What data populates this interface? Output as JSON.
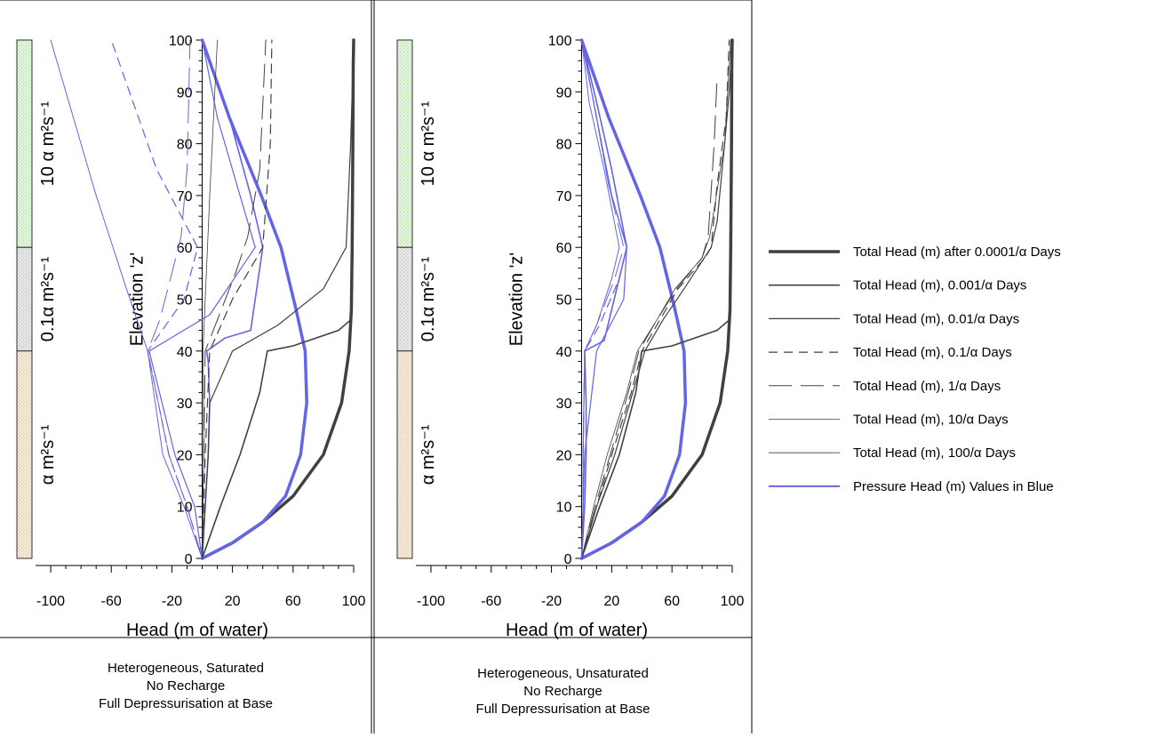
{
  "colors": {
    "total_head": "#404040",
    "pressure_head": "#6464e6",
    "layer_top": "#e0f2dc",
    "layer_mid": "#e4e4e4",
    "layer_bottom": "#f2e6d6"
  },
  "legend": {
    "items": [
      {
        "label": "Total Head (m) after 0.0001/α Days",
        "style": "thick"
      },
      {
        "label": "Total Head (m), 0.001/α Days",
        "style": "medium"
      },
      {
        "label": "Total Head (m),  0.01/α Days",
        "style": "thin"
      },
      {
        "label": "Total Head (m),  0.1/α Days",
        "style": "dash"
      },
      {
        "label": "Total Head (m),  1/α Days",
        "style": "longdash"
      },
      {
        "label": "Total Head (m), 10/α Days",
        "style": "hair"
      },
      {
        "label": "Total Head (m), 100/α Days",
        "style": "hair"
      },
      {
        "label": "Pressure Head (m) Values in Blue",
        "style": "blue"
      }
    ]
  },
  "chart_data": [
    {
      "type": "line",
      "xlabel": "Head (m of water)",
      "ylabel": "Elevation 'z'",
      "xlim": [
        -110,
        100
      ],
      "ylim": [
        0,
        100
      ],
      "xticks": [
        -100,
        -60,
        -20,
        20,
        60,
        100
      ],
      "yticks": [
        0,
        10,
        20,
        30,
        40,
        50,
        60,
        70,
        80,
        90,
        100
      ],
      "layers": [
        {
          "label": "10 α m²s⁻¹",
          "from": 60,
          "to": 100
        },
        {
          "label": "0.1α m²s⁻¹",
          "from": 40,
          "to": 60
        },
        {
          "label": "α m²s⁻¹",
          "from": 0,
          "to": 40
        }
      ],
      "caption": [
        "Heterogeneous, Saturated",
        "No Recharge",
        "Full Depressurisation at Base"
      ],
      "series": [
        {
          "kind": "total",
          "style": "thick",
          "x": [
            0,
            20,
            40,
            60,
            80,
            92,
            97,
            98.5,
            99,
            99.5,
            99.7,
            100
          ],
          "y": [
            0,
            3,
            7,
            12,
            20,
            30,
            40,
            48,
            60,
            80,
            95,
            100
          ]
        },
        {
          "kind": "pressure",
          "style": "thick",
          "x": [
            0,
            20,
            40,
            55,
            65,
            69,
            68,
            62,
            52,
            39,
            18,
            0
          ],
          "y": [
            0,
            3,
            7,
            12,
            20,
            30,
            40,
            48,
            60,
            70,
            85,
            100
          ]
        },
        {
          "kind": "total",
          "style": "medium",
          "x": [
            0,
            12,
            25,
            38,
            43,
            60,
            90,
            98,
            99,
            100
          ],
          "y": [
            0,
            10,
            20,
            32,
            40,
            41,
            44,
            46,
            60,
            100
          ]
        },
        {
          "kind": "pressure",
          "style": "medium",
          "x": [
            0,
            2,
            4,
            5,
            4,
            3,
            15,
            32,
            40,
            32,
            18,
            0
          ],
          "y": [
            0,
            10,
            20,
            30,
            38,
            40,
            42.5,
            44,
            60,
            70,
            85,
            100
          ]
        },
        {
          "kind": "total",
          "style": "thin",
          "x": [
            0,
            2,
            4,
            5,
            20,
            50,
            80,
            95,
            98,
            100
          ],
          "y": [
            0,
            10,
            20,
            30,
            40,
            45,
            52,
            60,
            80,
            100
          ]
        },
        {
          "kind": "pressure",
          "style": "thin",
          "x": [
            0,
            -5,
            -18,
            -35,
            5,
            35,
            25,
            10,
            0
          ],
          "y": [
            0,
            10,
            20,
            40,
            47,
            60,
            70,
            85,
            100
          ]
        },
        {
          "kind": "total",
          "style": "dash",
          "x": [
            0,
            1,
            2,
            5,
            20,
            40,
            45,
            46
          ],
          "y": [
            0,
            10,
            20,
            40,
            50,
            60,
            80,
            100
          ]
        },
        {
          "kind": "pressure",
          "style": "dash",
          "x": [
            0,
            -10,
            -22,
            -36,
            -12,
            -3,
            -30,
            -60
          ],
          "y": [
            0,
            10,
            20,
            40,
            50,
            60,
            75,
            100
          ]
        },
        {
          "kind": "total",
          "style": "longdash",
          "x": [
            0,
            0.5,
            1,
            2,
            10,
            22,
            30,
            38,
            42
          ],
          "y": [
            0,
            10,
            20,
            40,
            46,
            55,
            62,
            75,
            100
          ]
        },
        {
          "kind": "pressure",
          "style": "longdash",
          "x": [
            0,
            -10,
            -22,
            -36,
            -28,
            -20,
            -14,
            -10,
            -8
          ],
          "y": [
            0,
            10,
            20,
            40,
            46,
            55,
            62,
            75,
            100
          ]
        },
        {
          "kind": "pressure",
          "style": "hair",
          "x": [
            0,
            -12,
            -26,
            -36,
            -50,
            -70,
            -85,
            -100
          ],
          "y": [
            0,
            10,
            20,
            40,
            52,
            70,
            85,
            100
          ]
        },
        {
          "kind": "total",
          "style": "hair",
          "x": [
            0,
            1,
            1,
            0.5,
            5,
            10
          ],
          "y": [
            0,
            20,
            30,
            40,
            70,
            100
          ]
        }
      ]
    },
    {
      "type": "line",
      "xlabel": "Head (m of water)",
      "ylabel": "Elevation 'z'",
      "xlim": [
        -110,
        100
      ],
      "ylim": [
        0,
        100
      ],
      "xticks": [
        -100,
        -60,
        -20,
        20,
        60,
        100
      ],
      "yticks": [
        0,
        10,
        20,
        30,
        40,
        50,
        60,
        70,
        80,
        90,
        100
      ],
      "layers": [
        {
          "label": "10 α m²s⁻¹",
          "from": 60,
          "to": 100
        },
        {
          "label": "0.1α m²s⁻¹",
          "from": 40,
          "to": 60
        },
        {
          "label": "α m²s⁻¹",
          "from": 0,
          "to": 40
        }
      ],
      "caption": [
        "Heterogeneous, Unsaturated",
        "No Recharge",
        "Full Depressurisation at Base"
      ],
      "series": [
        {
          "kind": "total",
          "style": "thick",
          "x": [
            0,
            20,
            40,
            60,
            80,
            92,
            97,
            98.5,
            99,
            99.5,
            99.7,
            100
          ],
          "y": [
            0,
            3,
            7,
            12,
            20,
            30,
            40,
            48,
            60,
            80,
            95,
            100
          ]
        },
        {
          "kind": "pressure",
          "style": "thick",
          "x": [
            0,
            20,
            40,
            55,
            65,
            69,
            68,
            62,
            52,
            39,
            18,
            0
          ],
          "y": [
            0,
            3,
            7,
            12,
            20,
            30,
            40,
            48,
            60,
            70,
            85,
            100
          ]
        },
        {
          "kind": "total",
          "style": "medium",
          "x": [
            0,
            12,
            25,
            36,
            40,
            60,
            90,
            98,
            99,
            100
          ],
          "y": [
            0,
            10,
            20,
            32,
            40,
            41,
            44,
            46,
            60,
            100
          ]
        },
        {
          "kind": "pressure",
          "style": "medium",
          "x": [
            0,
            2,
            3,
            3,
            2,
            15,
            30,
            20,
            10,
            0
          ],
          "y": [
            0,
            10,
            20,
            30,
            40,
            42,
            60,
            75,
            88,
            100
          ]
        },
        {
          "kind": "total",
          "style": "thin",
          "x": [
            0,
            10,
            22,
            34,
            42,
            54,
            68,
            86,
            90,
            95,
            98,
            100
          ],
          "y": [
            0,
            10,
            20,
            32,
            40,
            46,
            52,
            60,
            65,
            80,
            90,
            100
          ]
        },
        {
          "kind": "pressure",
          "style": "thin",
          "x": [
            0,
            1,
            2,
            10,
            28,
            30,
            20,
            10,
            0
          ],
          "y": [
            0,
            10,
            20,
            40,
            50,
            60,
            70,
            85,
            100
          ]
        },
        {
          "kind": "total",
          "style": "dash",
          "x": [
            0,
            10,
            20,
            33,
            40,
            52,
            64,
            82,
            86,
            90,
            96,
            98
          ],
          "y": [
            0,
            10,
            20,
            32,
            40,
            46,
            52,
            58,
            60,
            72,
            85,
            100
          ]
        },
        {
          "kind": "pressure",
          "style": "dash",
          "x": [
            0,
            1,
            1,
            2,
            12,
            25,
            30,
            18,
            10,
            0
          ],
          "y": [
            0,
            10,
            20,
            40,
            45,
            54,
            60,
            72,
            85,
            100
          ]
        },
        {
          "kind": "total",
          "style": "longdash",
          "x": [
            0,
            9,
            19,
            31,
            38,
            50,
            63,
            80,
            84,
            88,
            90
          ],
          "y": [
            0,
            10,
            20,
            32,
            40,
            46,
            52,
            58,
            62,
            80,
            93
          ]
        },
        {
          "kind": "pressure",
          "style": "longdash",
          "x": [
            0,
            1,
            1,
            2,
            10,
            22,
            28,
            18,
            8,
            0
          ],
          "y": [
            0,
            10,
            20,
            40,
            45,
            54,
            60,
            72,
            88,
            100
          ]
        },
        {
          "kind": "total",
          "style": "hair",
          "x": [
            0,
            8,
            17,
            30,
            37,
            50,
            62,
            80,
            85,
            95,
            99
          ],
          "y": [
            0,
            10,
            20,
            32,
            40,
            46,
            52,
            58,
            62,
            80,
            100
          ]
        },
        {
          "kind": "pressure",
          "style": "hair",
          "x": [
            0,
            1,
            1,
            2,
            10,
            20,
            25,
            15,
            5,
            0
          ],
          "y": [
            0,
            10,
            20,
            40,
            45,
            54,
            60,
            75,
            88,
            100
          ]
        }
      ]
    }
  ]
}
